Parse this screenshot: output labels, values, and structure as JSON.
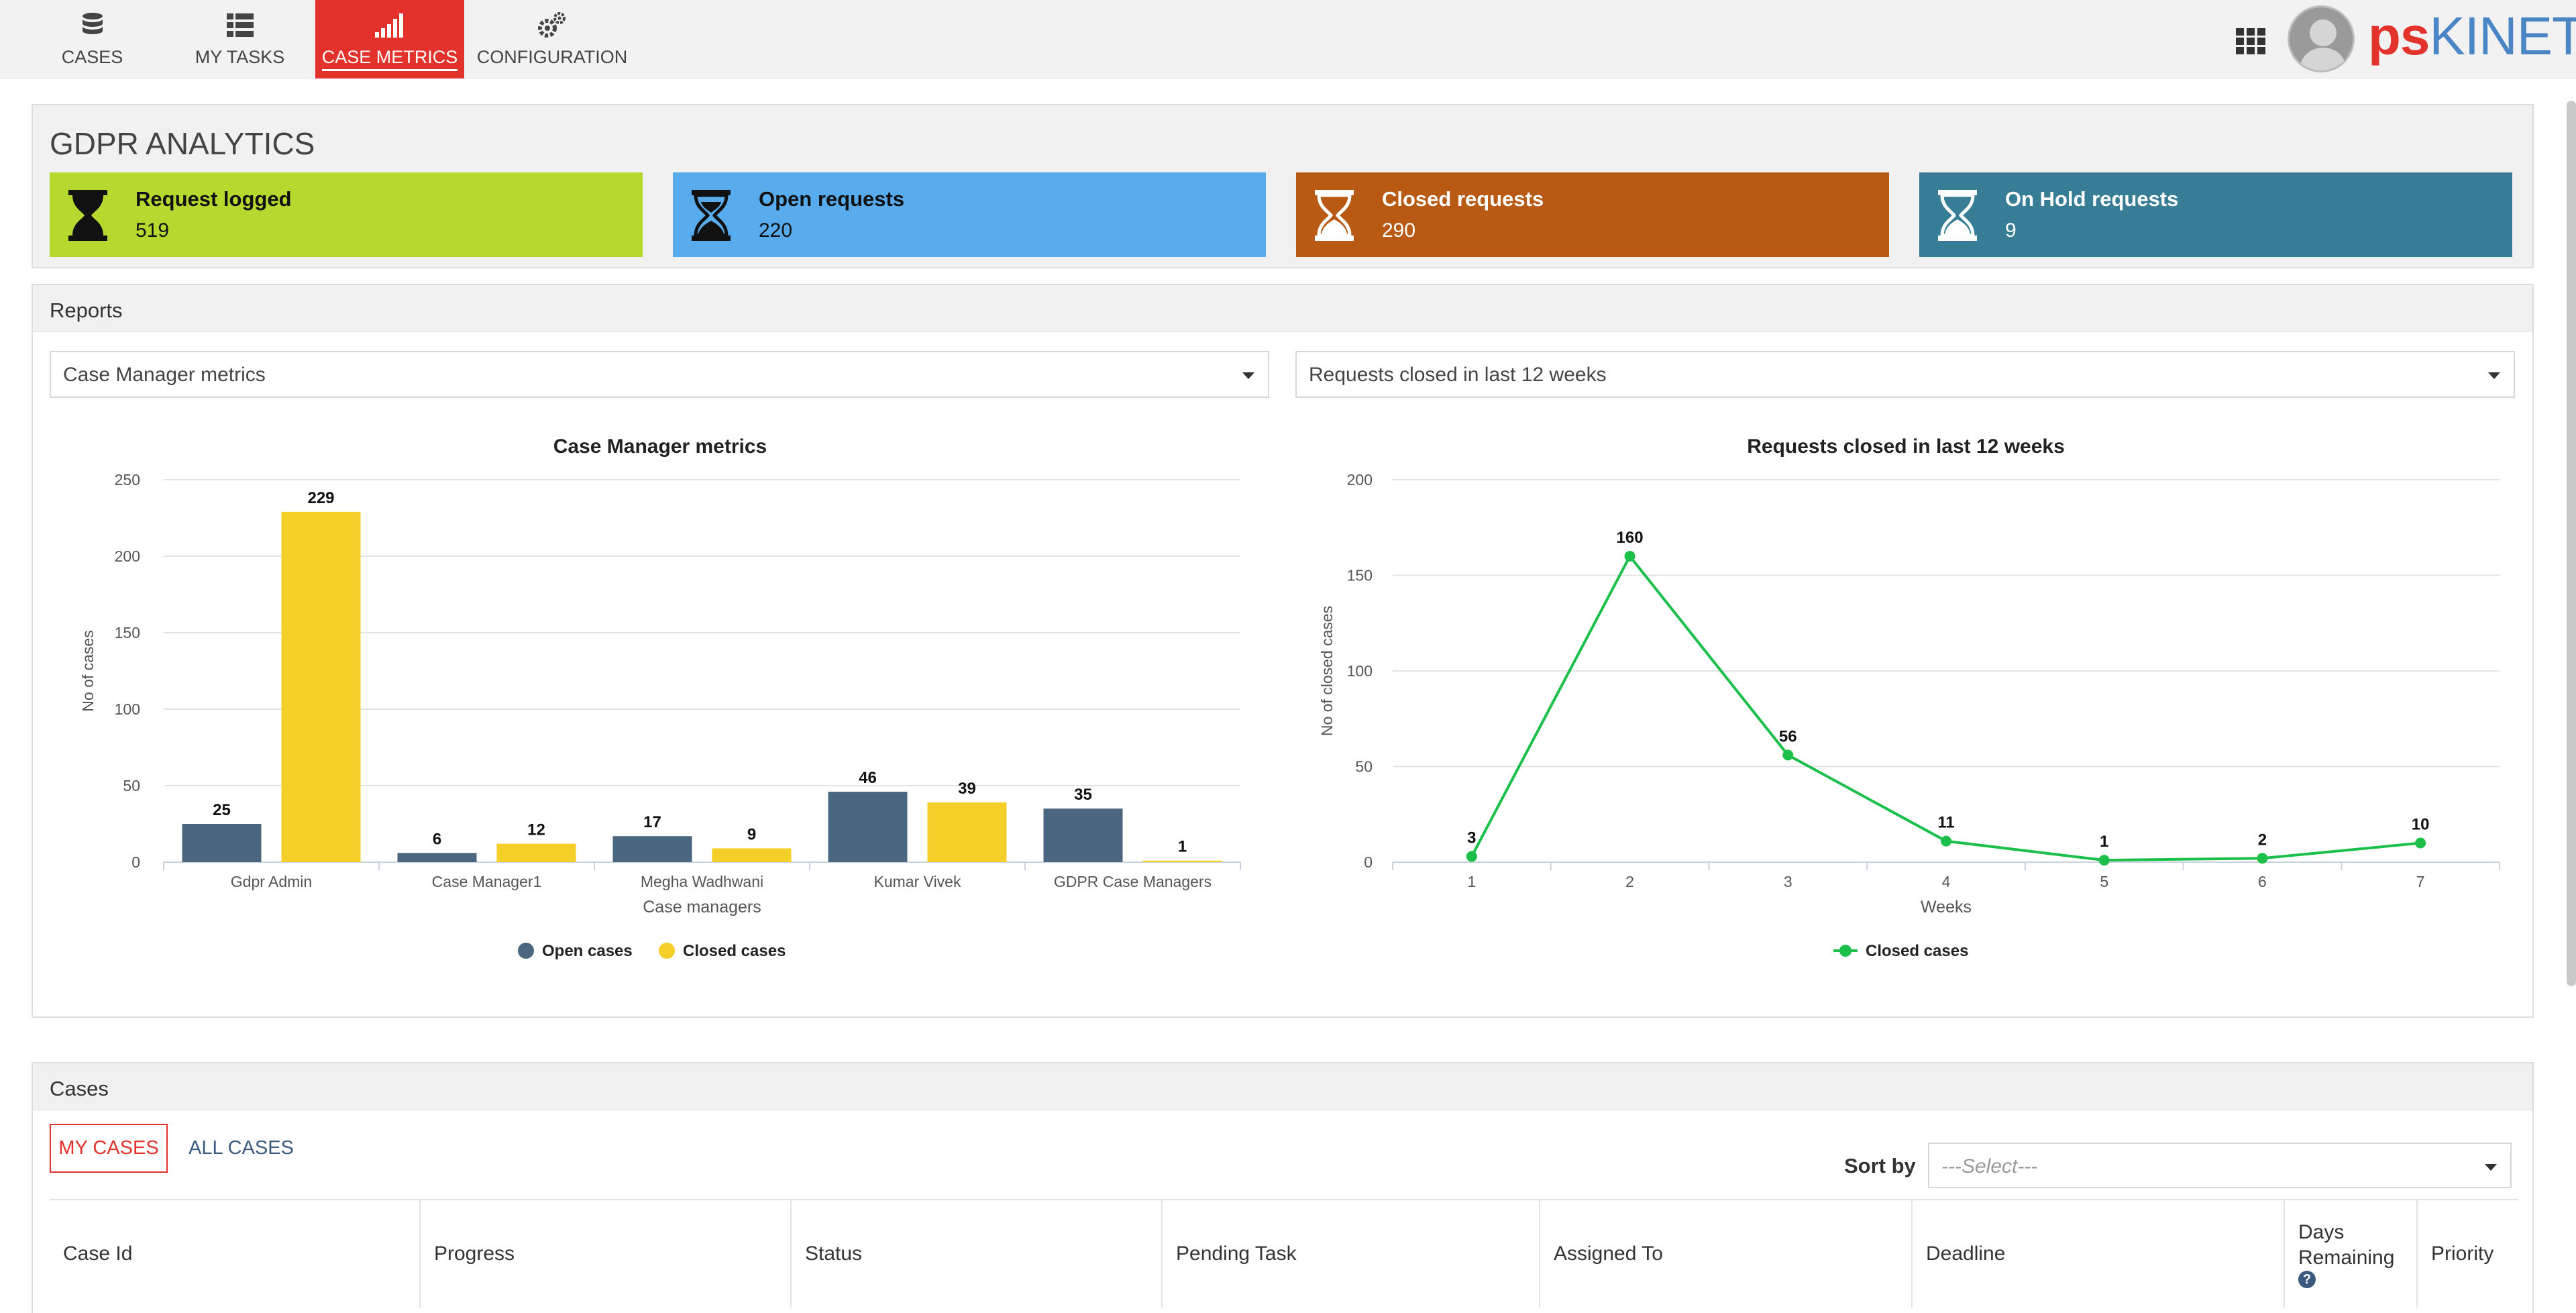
{
  "nav": {
    "tabs": [
      {
        "label": "CASES",
        "icon": "database-icon"
      },
      {
        "label": "MY TASKS",
        "icon": "list-icon"
      },
      {
        "label": "CASE METRICS",
        "icon": "signal-bars-icon"
      },
      {
        "label": "CONFIGURATION",
        "icon": "gears-icon"
      }
    ],
    "active_tab": "CASE METRICS",
    "logo_ps": "ps",
    "logo_rest": "KINETIC",
    "logo_colors": {
      "ps": "#e2322b",
      "kinetic": "#4a86c5"
    }
  },
  "analytics": {
    "title": "GDPR ANALYTICS",
    "stats": [
      {
        "title": "Request logged",
        "value": "519",
        "color": "#b5d92e",
        "icon": "hourglass-full-icon"
      },
      {
        "title": "Open requests",
        "value": "220",
        "color": "#58aced",
        "icon": "hourglass-half-icon"
      },
      {
        "title": "Closed requests",
        "value": "290",
        "color": "#b85a13",
        "icon": "hourglass-empty-icon"
      },
      {
        "title": "On Hold requests",
        "value": "9",
        "color": "#367d95",
        "icon": "hourglass-empty-icon"
      }
    ]
  },
  "reports": {
    "title": "Reports",
    "left_select": "Case Manager metrics",
    "right_select": "Requests closed in last 12 weeks"
  },
  "chart_data": [
    {
      "type": "bar",
      "title": "Case Manager metrics",
      "xlabel": "Case managers",
      "ylabel": "No of cases",
      "ylim": [
        0,
        250
      ],
      "yticks": [
        "0",
        "50",
        "100",
        "150",
        "200",
        "250"
      ],
      "categories": [
        "Gdpr Admin",
        "Case Manager1",
        "Megha Wadhwani",
        "Kumar Vivek",
        "GDPR Case Managers"
      ],
      "series": [
        {
          "name": "Open cases",
          "color": "#4b677f",
          "values": [
            25,
            6,
            17,
            46,
            35
          ]
        },
        {
          "name": "Closed cases",
          "color": "#f5cf27",
          "values": [
            229,
            12,
            9,
            39,
            1
          ]
        }
      ],
      "grid": true,
      "legend": "bottom-center"
    },
    {
      "type": "line",
      "title": "Requests closed in last 12 weeks",
      "xlabel": "Weeks",
      "ylabel": "No of closed cases",
      "ylim": [
        0,
        200
      ],
      "yticks": [
        "0",
        "50",
        "100",
        "150",
        "200"
      ],
      "x": [
        "1",
        "2",
        "3",
        "4",
        "5",
        "6",
        "7"
      ],
      "series": [
        {
          "name": "Closed cases",
          "color": "#1bbf4a",
          "values": [
            3,
            160,
            56,
            11,
            1,
            2,
            10
          ]
        }
      ],
      "grid": true,
      "legend": "bottom-center"
    }
  ],
  "cases": {
    "title": "Cases",
    "my_cases": "MY CASES",
    "all_cases": "ALL CASES",
    "sort_by_label": "Sort by",
    "sort_placeholder": "---Select---",
    "columns": [
      "Case Id",
      "Progress",
      "Status",
      "Pending Task",
      "Assigned To",
      "Deadline",
      "Days Remaining",
      "Priority"
    ]
  }
}
